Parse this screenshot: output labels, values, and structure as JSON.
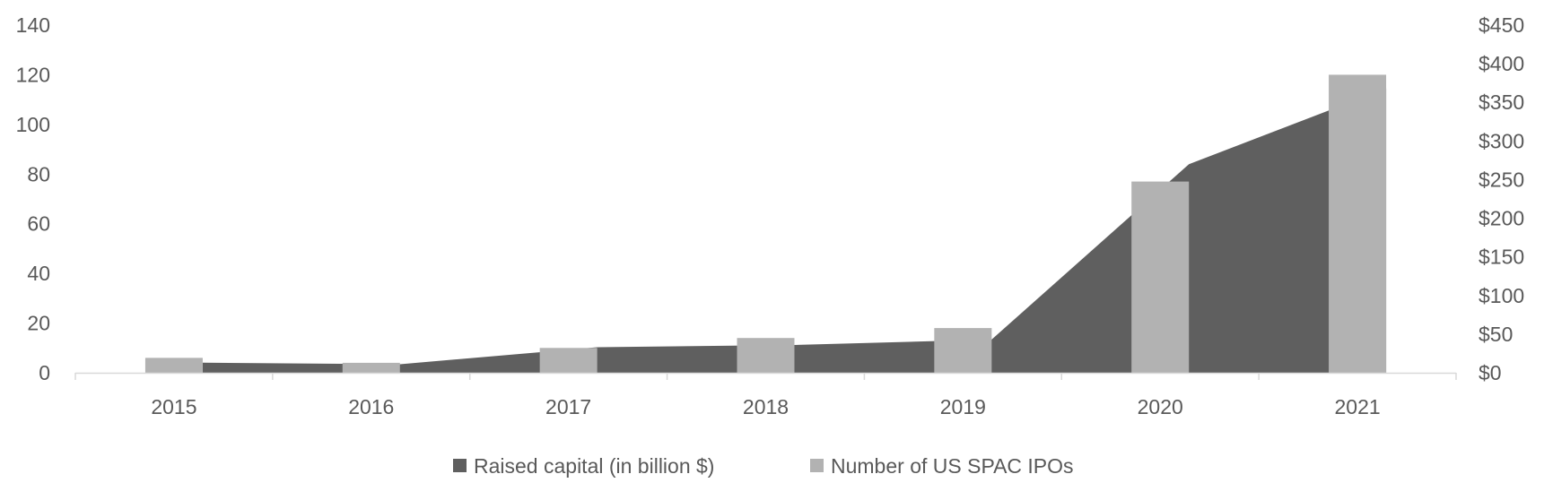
{
  "chart_data": {
    "type": "bar",
    "categories": [
      "2015",
      "2016",
      "2017",
      "2018",
      "2019",
      "2020",
      "2021"
    ],
    "series": [
      {
        "name": "Raised capital (in billion $)",
        "type": "area",
        "axis": "right",
        "values": [
          13,
          11,
          33,
          36,
          43,
          270,
          368
        ]
      },
      {
        "name": "Number of US SPAC IPOs",
        "type": "bar",
        "axis": "left",
        "values": [
          6,
          4,
          10,
          14,
          18,
          77,
          120
        ]
      }
    ],
    "left_axis": {
      "ylim": [
        0,
        140
      ],
      "ticks": [
        0,
        20,
        40,
        60,
        80,
        100,
        120,
        140
      ],
      "tick_labels": [
        "0",
        "20",
        "40",
        "60",
        "80",
        "100",
        "120",
        "140"
      ]
    },
    "right_axis": {
      "ylim": [
        0,
        450
      ],
      "ticks": [
        0,
        50,
        100,
        150,
        200,
        250,
        300,
        350,
        400,
        450
      ],
      "tick_labels": [
        "$0",
        "$50",
        "$100",
        "$150",
        "$200",
        "$250",
        "$300",
        "$350",
        "$400",
        "$450"
      ]
    },
    "legend": {
      "position": "bottom",
      "items": [
        "Raised capital (in billion $)",
        "Number of US SPAC IPOs"
      ]
    },
    "grid": false,
    "colors": {
      "area": "#5f5f5f",
      "bar": "#b2b2b2",
      "axis": "#d9d9d9",
      "text": "#595959"
    }
  }
}
